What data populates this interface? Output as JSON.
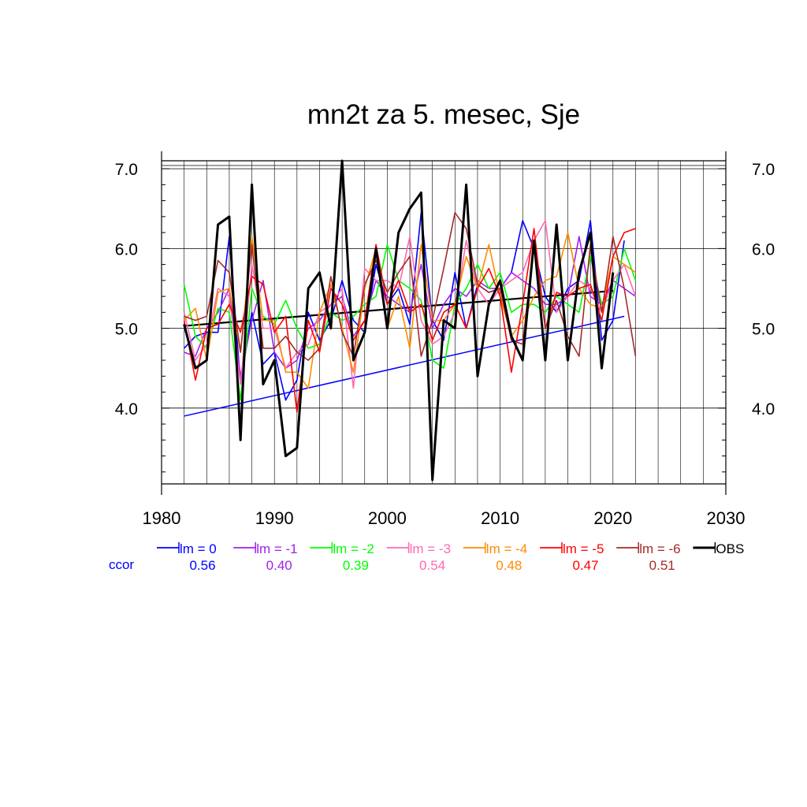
{
  "chart_data": {
    "type": "line",
    "title": "mn2t za 5. mesec, Sje",
    "xlabel": "",
    "ylabel": "",
    "xlim": [
      1980,
      2030
    ],
    "ylim": [
      3.05,
      7.1
    ],
    "x_ticks": [
      "1980",
      "1990",
      "2000",
      "2010",
      "2020",
      "2030"
    ],
    "y_ticks": [
      "4.0",
      "5.0",
      "6.0",
      "7.0"
    ],
    "grid": true,
    "legend_position": "bottom",
    "ccor_label": "ccor",
    "series": [
      {
        "name": "lm = 0",
        "color": "#0000ff",
        "ccor": "0.56",
        "x": [
          1982,
          1983,
          1984,
          1985,
          1986,
          1987,
          1988,
          1989,
          1990,
          1991,
          1992,
          1993,
          1994,
          1995,
          1996,
          1997,
          1998,
          1999,
          2000,
          2001,
          2002,
          2003,
          2004,
          2005,
          2006,
          2007,
          2008,
          2009,
          2010,
          2011,
          2012,
          2013,
          2014,
          2015,
          2016,
          2017,
          2018,
          2019,
          2020,
          2021
        ],
        "values": [
          4.75,
          4.9,
          4.95,
          4.95,
          6.15,
          4.3,
          5.2,
          4.55,
          4.7,
          4.1,
          4.35,
          5.2,
          4.85,
          5.1,
          5.6,
          5.1,
          4.95,
          5.8,
          5.3,
          5.5,
          5.05,
          6.45,
          5.1,
          4.85,
          5.7,
          5.0,
          5.55,
          5.45,
          5.5,
          5.7,
          6.35,
          6.0,
          5.4,
          5.2,
          5.5,
          5.6,
          6.35,
          4.85,
          5.1,
          6.1
        ]
      },
      {
        "name": "lm = -1",
        "color": "#a020f0",
        "ccor": "0.40",
        "x": [
          1982,
          1983,
          1984,
          1985,
          1986,
          1987,
          1988,
          1989,
          1990,
          1991,
          1992,
          1993,
          1994,
          1995,
          1996,
          1997,
          1998,
          1999,
          2000,
          2001,
          2002,
          2003,
          2004,
          2005,
          2006,
          2007,
          2008,
          2009,
          2010,
          2011,
          2012,
          2013,
          2014,
          2015,
          2016,
          2017,
          2018,
          2019,
          2020,
          2021,
          2022
        ],
        "values": [
          4.7,
          4.65,
          5.0,
          5.2,
          5.5,
          4.4,
          5.1,
          5.6,
          4.7,
          4.5,
          4.6,
          5.0,
          5.1,
          5.3,
          5.4,
          4.9,
          5.1,
          5.6,
          5.4,
          5.3,
          5.2,
          5.8,
          5.0,
          5.3,
          5.5,
          5.4,
          5.6,
          5.5,
          5.5,
          5.7,
          5.6,
          5.5,
          5.3,
          5.3,
          5.4,
          6.15,
          5.4,
          5.3,
          5.6,
          5.5,
          5.4
        ]
      },
      {
        "name": "lm = -2",
        "color": "#00ff00",
        "ccor": "0.39",
        "x": [
          1982,
          1983,
          1984,
          1985,
          1986,
          1987,
          1988,
          1989,
          1990,
          1991,
          1992,
          1993,
          1994,
          1995,
          1996,
          1997,
          1998,
          1999,
          2000,
          2001,
          2002,
          2003,
          2004,
          2005,
          2006,
          2007,
          2008,
          2009,
          2010,
          2011,
          2012,
          2013,
          2014,
          2015,
          2016,
          2017,
          2018,
          2019,
          2020,
          2021,
          2022
        ],
        "values": [
          5.55,
          4.9,
          4.75,
          5.25,
          5.2,
          4.1,
          5.5,
          5.15,
          5.05,
          5.35,
          5.0,
          4.75,
          4.8,
          5.2,
          5.1,
          5.15,
          5.3,
          5.4,
          6.05,
          5.6,
          5.5,
          5.35,
          4.6,
          4.5,
          5.3,
          5.5,
          5.8,
          5.5,
          5.7,
          5.2,
          5.3,
          5.3,
          5.2,
          5.4,
          5.3,
          5.2,
          5.9,
          5.3,
          5.4,
          6.0,
          5.6
        ]
      },
      {
        "name": "lm = -3",
        "color": "#ff69b4",
        "ccor": "0.54",
        "x": [
          1982,
          1983,
          1984,
          1985,
          1986,
          1987,
          1988,
          1989,
          1990,
          1991,
          1992,
          1993,
          1994,
          1995,
          1996,
          1997,
          1998,
          1999,
          2000,
          2001,
          2002,
          2003,
          2004,
          2005,
          2006,
          2007,
          2008,
          2009,
          2010,
          2011,
          2012,
          2013,
          2014,
          2015,
          2016,
          2017,
          2018,
          2019,
          2020,
          2021,
          2022
        ],
        "values": [
          5.2,
          4.6,
          4.8,
          5.5,
          5.4,
          4.3,
          5.8,
          5.0,
          5.0,
          4.5,
          4.7,
          4.8,
          5.2,
          5.3,
          5.5,
          4.25,
          5.75,
          5.6,
          5.6,
          5.5,
          6.15,
          5.1,
          4.8,
          4.9,
          5.2,
          6.1,
          5.5,
          5.3,
          5.5,
          5.6,
          5.7,
          6.1,
          6.35,
          5.2,
          5.4,
          5.6,
          5.5,
          5.2,
          5.6,
          5.8,
          5.4
        ]
      },
      {
        "name": "lm = -4",
        "color": "#ff8c00",
        "ccor": "0.48",
        "x": [
          1982,
          1983,
          1984,
          1985,
          1986,
          1987,
          1988,
          1989,
          1990,
          1991,
          1992,
          1993,
          1994,
          1995,
          1996,
          1997,
          1998,
          1999,
          2000,
          2001,
          2002,
          2003,
          2004,
          2005,
          2006,
          2007,
          2008,
          2009,
          2010,
          2011,
          2012,
          2013,
          2014,
          2015,
          2016,
          2017,
          2018,
          2019,
          2020,
          2021,
          2022
        ],
        "values": [
          5.1,
          5.25,
          4.6,
          5.45,
          5.5,
          4.7,
          6.15,
          5.1,
          5.1,
          4.45,
          4.45,
          4.25,
          5.2,
          5.55,
          5.0,
          4.45,
          5.5,
          6.0,
          5.0,
          5.4,
          4.75,
          6.05,
          5.1,
          5.1,
          5.3,
          5.9,
          5.5,
          6.05,
          5.4,
          4.9,
          5.1,
          5.4,
          5.6,
          5.65,
          6.2,
          5.5,
          5.3,
          5.25,
          5.9,
          5.8,
          5.7
        ]
      },
      {
        "name": "lm = -5",
        "color": "#ff0000",
        "ccor": "0.47",
        "x": [
          1982,
          1983,
          1984,
          1985,
          1986,
          1987,
          1988,
          1989,
          1990,
          1991,
          1992,
          1993,
          1994,
          1995,
          1996,
          1997,
          1998,
          1999,
          2000,
          2001,
          2002,
          2003,
          2004,
          2005,
          2006,
          2007,
          2008,
          2009,
          2010,
          2011,
          2012,
          2013,
          2014,
          2015,
          2016,
          2017,
          2018,
          2019,
          2020,
          2021,
          2022
        ],
        "values": [
          5.1,
          4.35,
          5.0,
          5.05,
          5.3,
          4.95,
          5.65,
          5.55,
          4.95,
          5.15,
          3.95,
          5.1,
          4.7,
          5.5,
          5.3,
          4.85,
          5.1,
          6.05,
          5.3,
          5.6,
          5.2,
          5.3,
          4.85,
          5.2,
          5.3,
          5.0,
          5.5,
          5.75,
          5.4,
          4.45,
          5.3,
          6.25,
          5.0,
          5.45,
          5.4,
          5.5,
          5.55,
          5.1,
          5.9,
          6.2,
          6.25
        ]
      },
      {
        "name": "lm = -6",
        "color": "#a52a2a",
        "ccor": "0.51",
        "x": [
          1982,
          1983,
          1984,
          1985,
          1986,
          1987,
          1988,
          1989,
          1990,
          1991,
          1992,
          1993,
          1994,
          1995,
          1996,
          1997,
          1998,
          1999,
          2000,
          2001,
          2002,
          2003,
          2004,
          2005,
          2006,
          2007,
          2008,
          2009,
          2010,
          2011,
          2012,
          2013,
          2014,
          2015,
          2016,
          2017,
          2018,
          2019,
          2020,
          2021,
          2022
        ],
        "values": [
          5.15,
          5.1,
          5.15,
          5.85,
          5.7,
          4.7,
          6.05,
          4.75,
          4.75,
          4.9,
          4.7,
          4.6,
          4.75,
          5.65,
          4.95,
          4.65,
          5.55,
          5.85,
          5.45,
          5.7,
          5.9,
          4.65,
          5.1,
          5.75,
          6.45,
          6.25,
          5.55,
          5.45,
          5.5,
          4.85,
          4.8,
          6.1,
          5.0,
          5.35,
          4.9,
          4.65,
          6.05,
          5.2,
          6.15,
          5.5,
          4.65
        ]
      },
      {
        "name": "OBS",
        "color": "#000000",
        "ccor": "",
        "x": [
          1982,
          1983,
          1984,
          1985,
          1986,
          1987,
          1988,
          1989,
          1990,
          1991,
          1992,
          1993,
          1994,
          1995,
          1996,
          1997,
          1998,
          1999,
          2000,
          2001,
          2002,
          2003,
          2004,
          2005,
          2006,
          2007,
          2008,
          2009,
          2010,
          2011,
          2012,
          2013,
          2014,
          2015,
          2016,
          2017,
          2018,
          2019,
          2020
        ],
        "values": [
          5.05,
          4.5,
          4.6,
          6.3,
          6.4,
          3.6,
          6.8,
          4.3,
          4.6,
          3.4,
          3.5,
          5.5,
          5.7,
          5.0,
          7.1,
          4.6,
          4.95,
          6.0,
          5.0,
          6.2,
          6.5,
          6.7,
          3.1,
          5.1,
          5.0,
          6.8,
          4.4,
          5.3,
          5.6,
          4.9,
          4.6,
          6.1,
          4.6,
          6.3,
          4.6,
          5.7,
          6.2,
          4.5,
          5.7
        ]
      }
    ],
    "trend_lines": [
      {
        "color": "#0000ff",
        "x": [
          1982,
          2021
        ],
        "values": [
          3.9,
          5.15
        ]
      },
      {
        "color": "#000000",
        "x": [
          1982,
          2020
        ],
        "values": [
          5.03,
          5.47
        ]
      }
    ]
  }
}
